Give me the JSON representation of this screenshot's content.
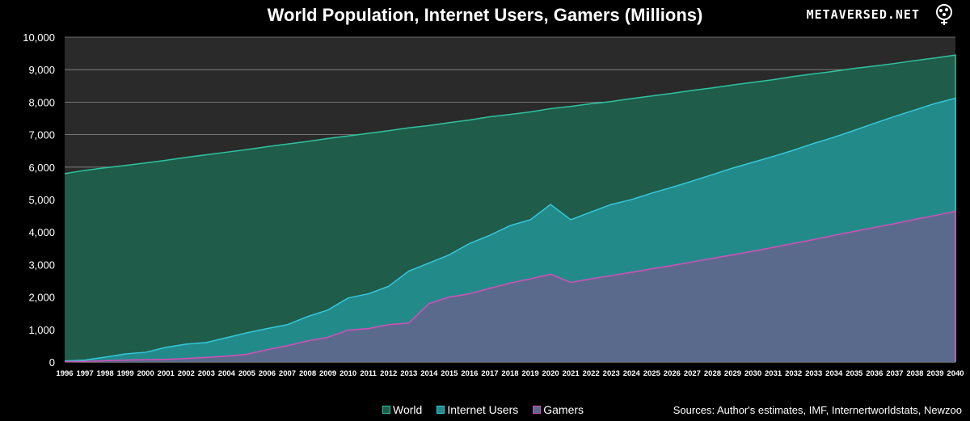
{
  "brand": {
    "name": "METAVERSED.NET",
    "logo_icon": "brain-tree-logo-icon"
  },
  "chart_data": {
    "type": "area",
    "title": "World Population, Internet Users, Gamers (Millions)",
    "xlabel": "",
    "ylabel": "",
    "ylim": [
      0,
      10000
    ],
    "yticks": [
      0,
      1000,
      2000,
      3000,
      4000,
      5000,
      6000,
      7000,
      8000,
      9000,
      10000
    ],
    "ytick_labels": [
      "0",
      "1,000",
      "2,000",
      "3,000",
      "4,000",
      "5,000",
      "6,000",
      "7,000",
      "8,000",
      "9,000",
      "10,000"
    ],
    "grid": true,
    "legend_position": "bottom-center",
    "x": [
      "1996",
      "1997",
      "1998",
      "1999",
      "2000",
      "2001",
      "2002",
      "2003",
      "2004",
      "2005",
      "2006",
      "2007",
      "2008",
      "2009",
      "2010",
      "2011",
      "2012",
      "2013",
      "2014",
      "2015",
      "2016",
      "2017",
      "2018",
      "2019",
      "2020",
      "2021",
      "2022",
      "2023",
      "2024",
      "2025",
      "2026",
      "2027",
      "2028",
      "2029",
      "2030",
      "2031",
      "2032",
      "2033",
      "2034",
      "2035",
      "2036",
      "2037",
      "2038",
      "2039",
      "2040"
    ],
    "series": [
      {
        "name": "World",
        "color": "#2ec4a0",
        "fill": "#1f5c4a",
        "values": [
          5800,
          5900,
          5980,
          6050,
          6130,
          6210,
          6300,
          6380,
          6460,
          6540,
          6630,
          6710,
          6790,
          6880,
          6960,
          7040,
          7120,
          7210,
          7280,
          7370,
          7450,
          7550,
          7620,
          7700,
          7800,
          7870,
          7950,
          8020,
          8110,
          8190,
          8270,
          8360,
          8440,
          8530,
          8610,
          8690,
          8790,
          8870,
          8950,
          9040,
          9110,
          9190,
          9280,
          9360,
          9450
        ]
      },
      {
        "name": "Internet Users",
        "color": "#33c9dc",
        "fill": "#238a8a",
        "values": [
          30,
          60,
          150,
          250,
          300,
          450,
          550,
          600,
          750,
          900,
          1030,
          1150,
          1400,
          1600,
          1970,
          2100,
          2330,
          2800,
          3050,
          3300,
          3650,
          3900,
          4200,
          4380,
          4850,
          4380,
          4620,
          4850,
          5000,
          5200,
          5380,
          5570,
          5770,
          5970,
          6150,
          6330,
          6520,
          6730,
          6920,
          7130,
          7350,
          7560,
          7760,
          7960,
          8120
        ]
      },
      {
        "name": "Gamers",
        "color": "#d44fb7",
        "fill": "#5a6a8c",
        "values": [
          10,
          20,
          40,
          60,
          70,
          80,
          110,
          140,
          180,
          240,
          380,
          500,
          650,
          760,
          980,
          1030,
          1150,
          1200,
          1800,
          2000,
          2100,
          2270,
          2430,
          2560,
          2700,
          2450,
          2560,
          2660,
          2760,
          2870,
          2970,
          3080,
          3190,
          3300,
          3410,
          3530,
          3650,
          3770,
          3900,
          4020,
          4140,
          4260,
          4390,
          4510,
          4640
        ]
      }
    ],
    "source_note": "Sources: Author's estimates, IMF, Internertworldstats, Newzoo"
  }
}
